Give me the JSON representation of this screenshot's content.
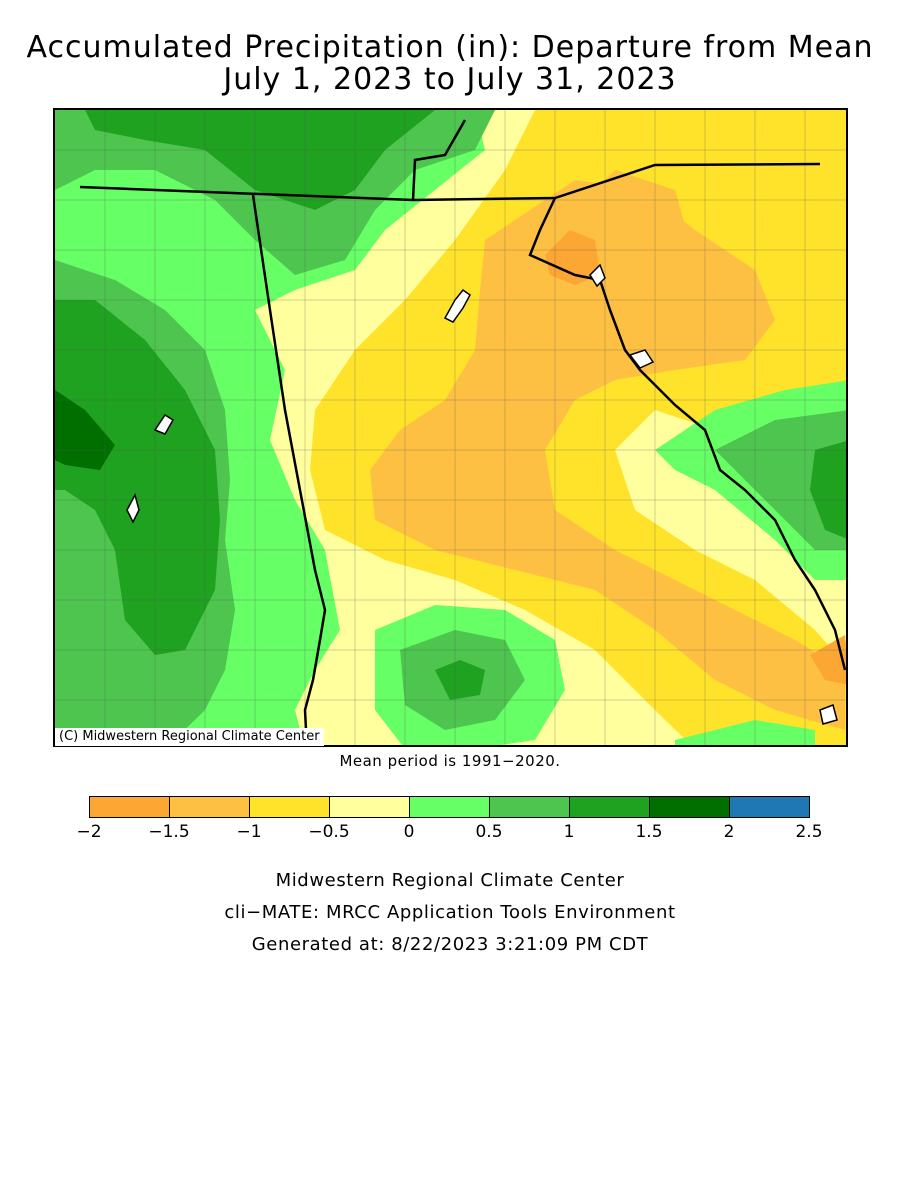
{
  "title": {
    "line1": "Accumulated Precipitation (in): Departure from Mean",
    "line2": "July 1, 2023 to July 31, 2023"
  },
  "map": {
    "copyright": "(C) Midwestern Regional Climate Center",
    "mean_note": "Mean period is 1991−2020.",
    "region_levels": {
      "west_arkansas": "0.5 to 2",
      "north_border_band": "0.5 to 1.5",
      "mississippi_river_corridor": "-0.5 to 0",
      "alabama_central": "-2 to -0.5",
      "georgia_east_coast": "0.5 to 2",
      "south_central_patch": "0.5 to 1.5",
      "southeast_coast_spot": "-2 to -1.5"
    }
  },
  "legend": {
    "bins": [
      {
        "from": -2,
        "to": -1.5,
        "color": "#fca634"
      },
      {
        "from": -1.5,
        "to": -1,
        "color": "#fec043"
      },
      {
        "from": -1,
        "to": -0.5,
        "color": "#ffe32a"
      },
      {
        "from": -0.5,
        "to": 0,
        "color": "#ffff9e"
      },
      {
        "from": 0,
        "to": 0.5,
        "color": "#66ff66"
      },
      {
        "from": 0.5,
        "to": 1,
        "color": "#4ec54e"
      },
      {
        "from": 1,
        "to": 1.5,
        "color": "#1fa21f"
      },
      {
        "from": 1.5,
        "to": 2,
        "color": "#006f00"
      },
      {
        "from": 2,
        "to": 2.5,
        "color": "#1f77b4"
      }
    ],
    "ticks": [
      "−2",
      "−1.5",
      "−1",
      "−0.5",
      "0",
      "0.5",
      "1",
      "1.5",
      "2",
      "2.5"
    ]
  },
  "footer": {
    "line1": "Midwestern Regional Climate Center",
    "line2": "cli−MATE: MRCC Application Tools Environment",
    "line3": "Generated at: 8/22/2023 3:21:09 PM CDT"
  }
}
